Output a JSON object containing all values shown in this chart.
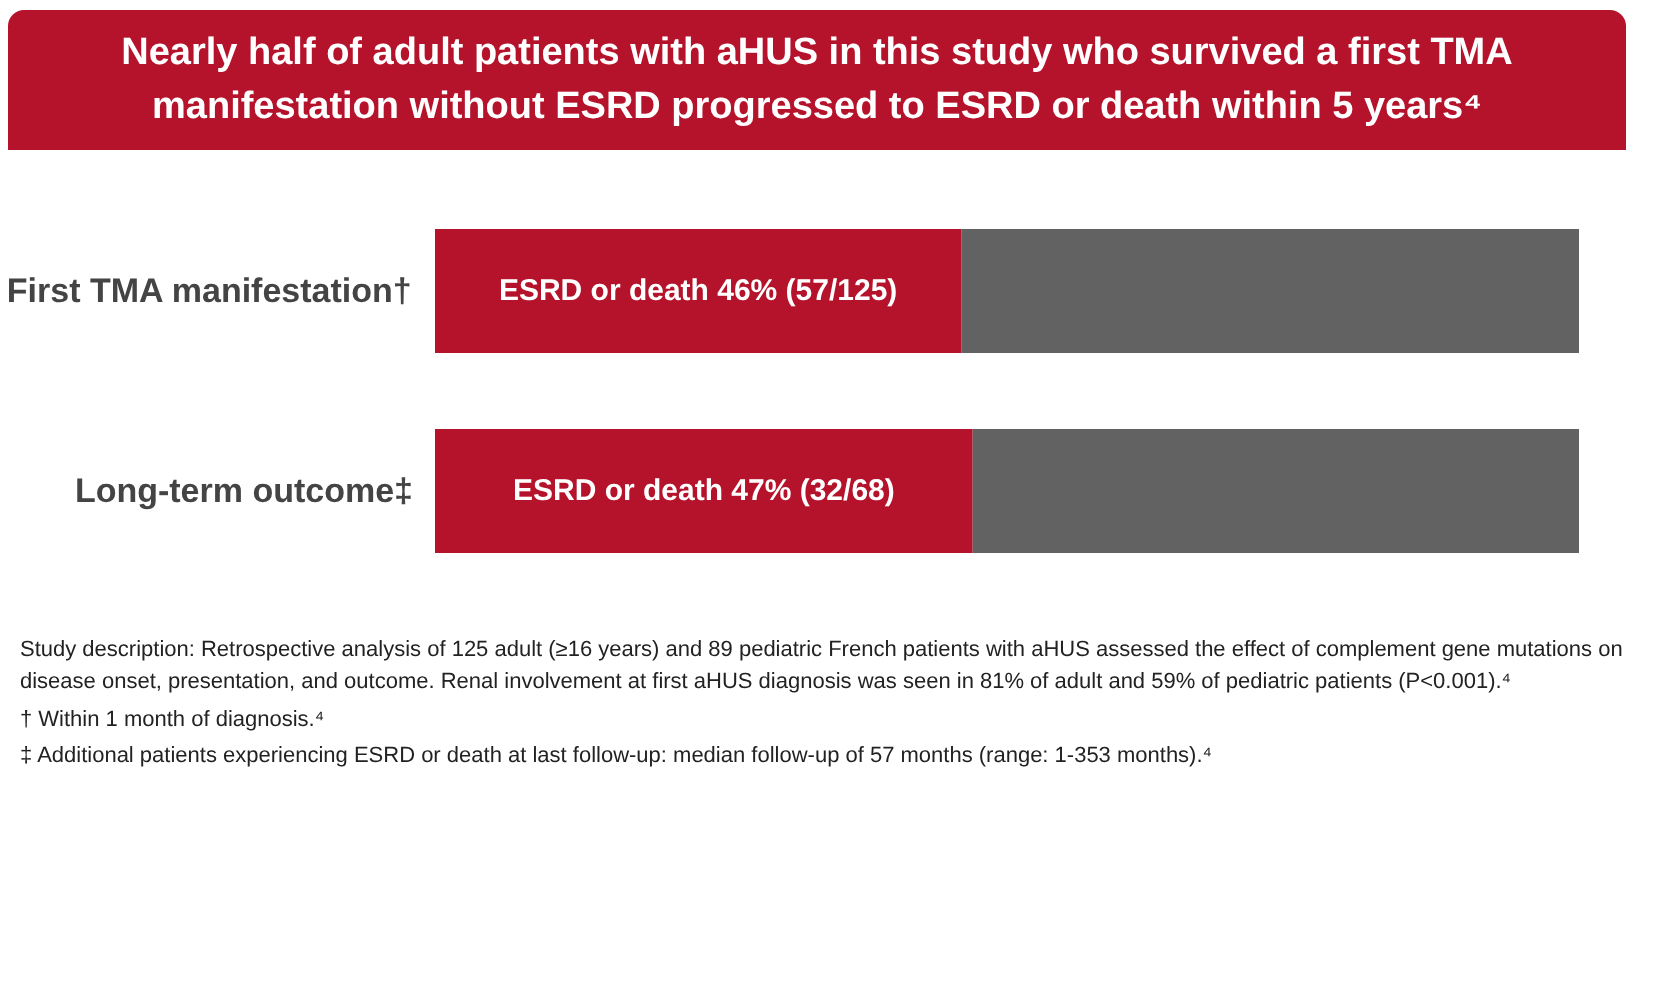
{
  "chart_data": {
    "type": "bar",
    "orientation": "horizontal",
    "stacked": true,
    "title": "Nearly half of adult patients with aHUS in this study who survived a first TMA manifestation without ESRD progressed to ESRD or death within 5 years⁴",
    "categories": [
      "First TMA manifestation†",
      "Long-term outcome‡"
    ],
    "series": [
      {
        "color": "#b5132b",
        "values": [
          46,
          47
        ],
        "value_labels": [
          "ESRD or death 46% (57/125)",
          "ESRD or death 47% (32/68)"
        ]
      },
      {
        "color": "#626262",
        "values": [
          54,
          53
        ]
      }
    ],
    "xlim": [
      0,
      100
    ],
    "tick_labels": "y",
    "annotations": [
      "Study description: Retrospective analysis of 125 adult (≥16 years) and 89 pediatric French patients with aHUS assessed the effect of complement gene mutations on disease onset, presentation, and outcome. Renal involvement at first aHUS diagnosis was seen in 81% of adult and 59% of pediatric patients (P<0.001).⁴",
      "† Within 1 month of diagnosis.⁴",
      "‡ Additional patients experiencing ESRD or death at last follow-up: median follow-up of 57 months (range: 1-353 months).⁴"
    ]
  }
}
